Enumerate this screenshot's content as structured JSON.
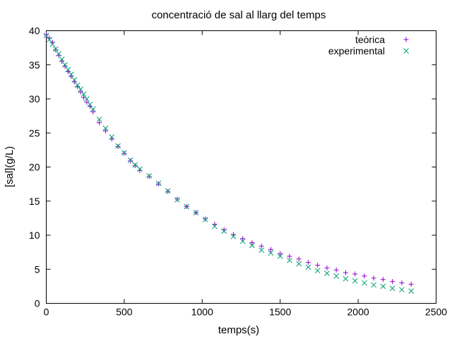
{
  "chart_data": {
    "type": "scatter",
    "title": "concentració de sal al llarg del temps",
    "xlabel": "temps(s)",
    "ylabel": "[sal](g/L)",
    "xlim": [
      0,
      2500
    ],
    "ylim": [
      0,
      40
    ],
    "xticks": [
      0,
      500,
      1000,
      1500,
      2000,
      2500
    ],
    "yticks": [
      0,
      5,
      10,
      15,
      20,
      25,
      30,
      35,
      40
    ],
    "grid": false,
    "legend_position": "top-right",
    "series": [
      {
        "name": "teòrica",
        "marker": "plus",
        "color": "#9400d3",
        "x": [
          0,
          20,
          40,
          60,
          80,
          100,
          120,
          140,
          160,
          180,
          200,
          220,
          240,
          260,
          280,
          300,
          340,
          380,
          420,
          460,
          500,
          540,
          570,
          600,
          660,
          720,
          780,
          840,
          900,
          960,
          1020,
          1080,
          1140,
          1200,
          1260,
          1320,
          1380,
          1440,
          1500,
          1560,
          1620,
          1680,
          1740,
          1800,
          1860,
          1920,
          1980,
          2040,
          2100,
          2160,
          2220,
          2280,
          2340
        ],
        "y": [
          39.4,
          38.9,
          38.3,
          37.2,
          36.4,
          35.5,
          34.8,
          34.0,
          33.3,
          32.5,
          31.8,
          31.0,
          30.2,
          29.5,
          28.9,
          28.1,
          26.5,
          25.3,
          24.1,
          23.0,
          22.0,
          20.9,
          20.2,
          19.5,
          18.6,
          17.5,
          16.4,
          15.3,
          14.2,
          13.3,
          12.4,
          11.6,
          10.8,
          10.1,
          9.5,
          8.9,
          8.4,
          7.9,
          7.3,
          6.9,
          6.5,
          6.0,
          5.6,
          5.2,
          4.9,
          4.5,
          4.3,
          4.0,
          3.7,
          3.5,
          3.2,
          3.0,
          2.8
        ]
      },
      {
        "name": "experimental",
        "marker": "cross",
        "color": "#009e73",
        "x": [
          0,
          20,
          40,
          60,
          80,
          100,
          120,
          140,
          160,
          180,
          200,
          220,
          240,
          260,
          280,
          300,
          340,
          380,
          420,
          460,
          500,
          540,
          570,
          600,
          660,
          720,
          780,
          840,
          900,
          960,
          1020,
          1080,
          1140,
          1200,
          1260,
          1320,
          1380,
          1440,
          1500,
          1560,
          1620,
          1680,
          1740,
          1800,
          1860,
          1920,
          1980,
          2040,
          2100,
          2160,
          2220,
          2280,
          2340
        ],
        "y": [
          39.3,
          38.7,
          38.0,
          37.3,
          36.6,
          35.8,
          35.0,
          34.3,
          33.6,
          32.8,
          32.0,
          31.4,
          30.7,
          30.0,
          29.2,
          28.5,
          27.0,
          25.7,
          24.4,
          23.1,
          22.1,
          21.0,
          20.3,
          19.7,
          18.7,
          17.6,
          16.5,
          15.2,
          14.2,
          13.3,
          12.3,
          11.3,
          10.6,
          9.8,
          9.1,
          8.5,
          7.8,
          7.4,
          6.9,
          6.3,
          5.8,
          5.3,
          4.8,
          4.4,
          4.0,
          3.6,
          3.3,
          3.0,
          2.7,
          2.5,
          2.2,
          2.0,
          1.8
        ]
      }
    ]
  }
}
